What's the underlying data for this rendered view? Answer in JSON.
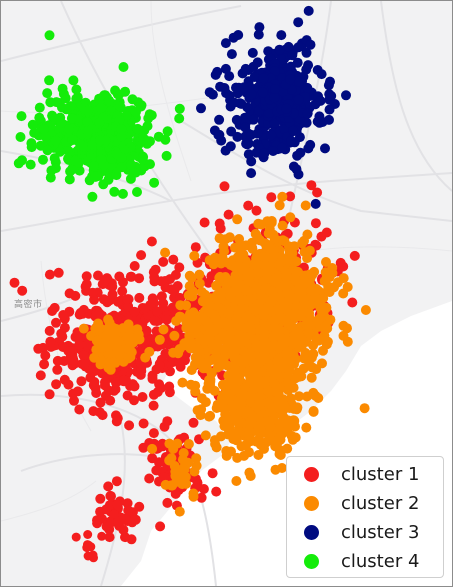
{
  "map": {
    "place_label": "高密市"
  },
  "legend": {
    "items": [
      {
        "label": "cluster 1",
        "color": "#f41e1e"
      },
      {
        "label": "cluster 2",
        "color": "#fb8a00"
      },
      {
        "label": "cluster 3",
        "color": "#000b80"
      },
      {
        "label": "cluster 4",
        "color": "#14ec0a"
      }
    ]
  },
  "colors": {
    "land": "#f2f2f3",
    "water": "#ffffff",
    "roads": "#e3e3e5"
  }
}
